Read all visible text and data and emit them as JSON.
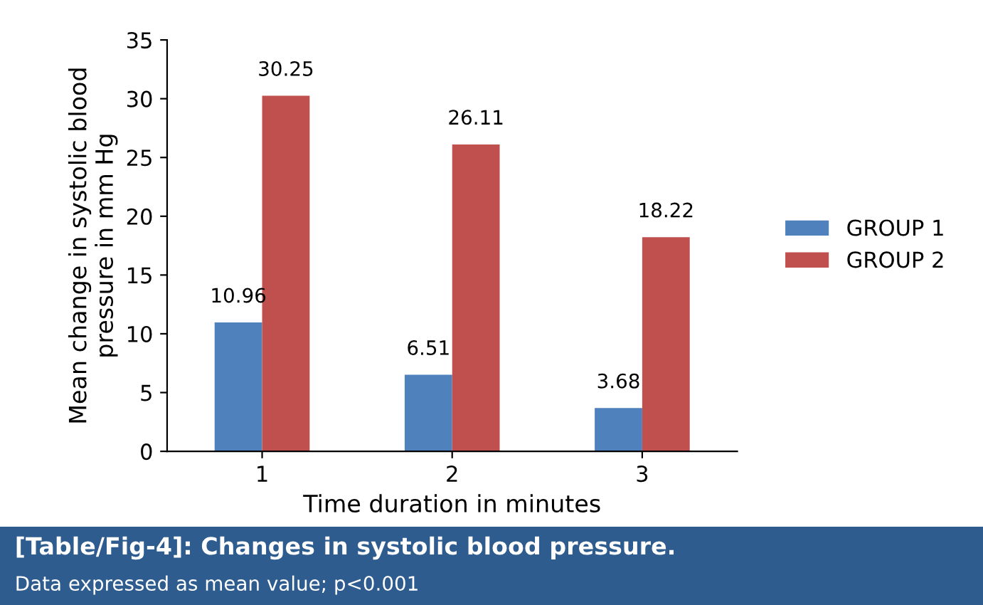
{
  "chart_data": {
    "type": "bar",
    "xlabel": "Time duration in minutes",
    "ylabel": "Mean change in systolic blood\npressure in mm Hg",
    "categories": [
      "1",
      "2",
      "3"
    ],
    "series": [
      {
        "name": "GROUP 1",
        "color": "#4f81bd",
        "values": [
          10.96,
          6.51,
          3.68
        ]
      },
      {
        "name": "GROUP 2",
        "color": "#c0504d",
        "values": [
          30.25,
          26.11,
          18.22
        ]
      }
    ],
    "ylim": [
      0,
      35
    ],
    "yticks": [
      0,
      5,
      10,
      15,
      20,
      25,
      30,
      35
    ],
    "grid": false,
    "legend": "right",
    "data_labels": true,
    "annotations": [
      "[Table/Fig-4]: Changes in systolic blood pressure.",
      "Data expressed as mean value; p<0.001"
    ]
  }
}
